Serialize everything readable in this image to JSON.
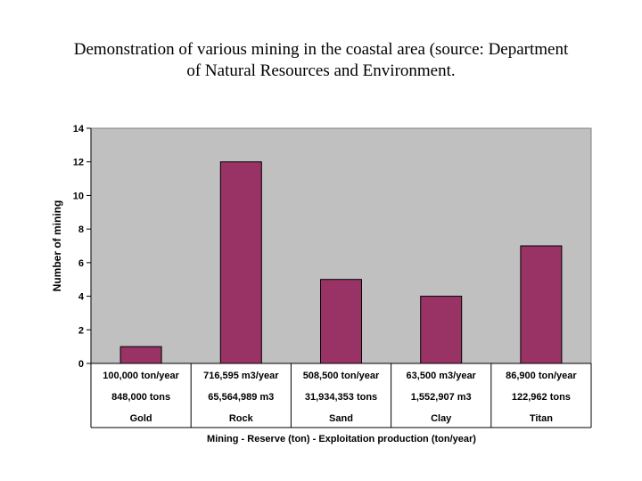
{
  "chart_data": {
    "type": "bar",
    "title": "Demonstration of various mining in the coastal area (source: Department of Natural Resources and Environment.",
    "title_lines": [
      "Demonstration of various mining in the coastal area (source: Department",
      "of Natural Resources and Environment."
    ],
    "ylabel": "Number of mining",
    "xlabel": "Mining - Reserve (ton) - Exploitation production (ton/year)",
    "ylim": [
      0,
      14
    ],
    "yticks": [
      "0",
      "2",
      "4",
      "6",
      "8",
      "10",
      "12",
      "14"
    ],
    "categories": [
      "Gold",
      "Rock",
      "Sand",
      "Clay",
      "Titan"
    ],
    "values": [
      1,
      12,
      5,
      4,
      7
    ],
    "table_rows": [
      [
        "100,000 ton/year",
        "716,595 m3/year",
        "508,500 ton/year",
        "63,500 m3/year",
        "86,900 ton/year"
      ],
      [
        "848,000 tons",
        "65,564,989 m3",
        "31,934,353 tons",
        "1,552,907 m3",
        "122,962 tons"
      ],
      [
        "Gold",
        "Rock",
        "Sand",
        "Clay",
        "Titan"
      ]
    ],
    "grid": false,
    "colors": {
      "bar": "#993366",
      "plot_background": "#c0c0c0",
      "axis": "#000000"
    }
  }
}
